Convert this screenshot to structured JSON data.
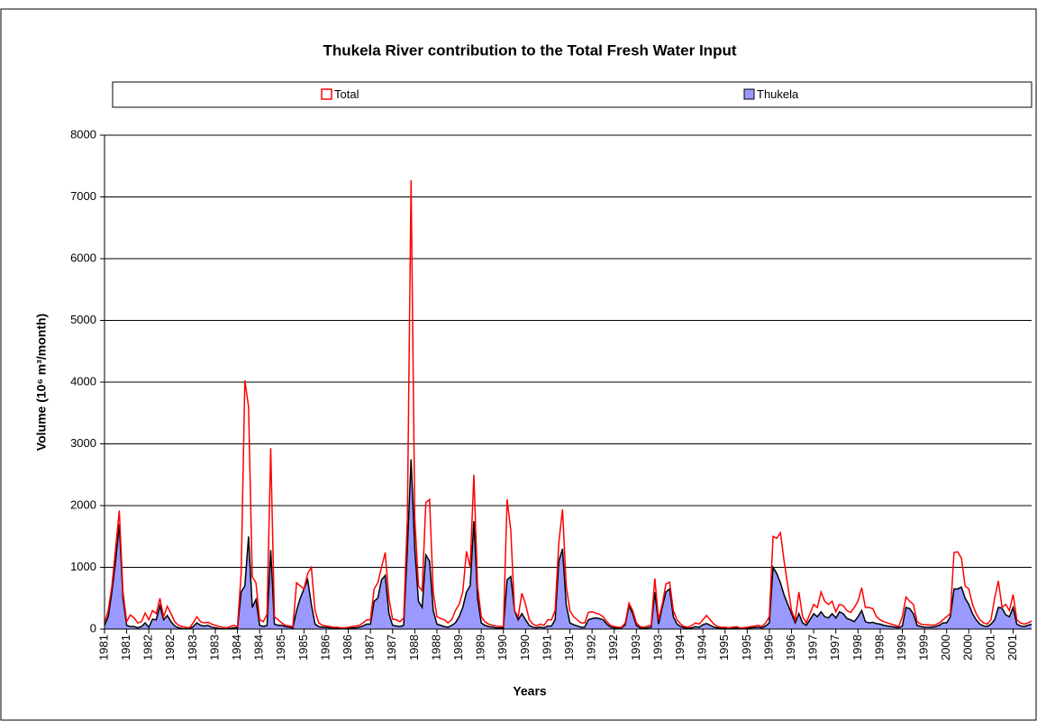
{
  "chart_data": {
    "type": "line",
    "title": "Thukela River contribution to the Total Fresh Water Input",
    "x_label": "Years",
    "y_label": "Volume (10⁶ m³/month)",
    "ylim": [
      0,
      8000
    ],
    "yticks": [
      0,
      1000,
      2000,
      3000,
      4000,
      5000,
      6000,
      7000,
      8000
    ],
    "grid": true,
    "legend": "top",
    "categories": [
      "1981",
      null,
      null,
      null,
      null,
      null,
      "1981",
      null,
      null,
      null,
      null,
      null,
      "1982",
      null,
      null,
      null,
      null,
      null,
      "1982",
      null,
      null,
      null,
      null,
      null,
      "1983",
      null,
      null,
      null,
      null,
      null,
      "1983",
      null,
      null,
      null,
      null,
      null,
      "1984",
      null,
      null,
      null,
      null,
      null,
      "1984",
      null,
      null,
      null,
      null,
      null,
      "1985",
      null,
      null,
      null,
      null,
      null,
      "1985",
      null,
      null,
      null,
      null,
      null,
      "1986",
      null,
      null,
      null,
      null,
      null,
      "1986",
      null,
      null,
      null,
      null,
      null,
      "1987",
      null,
      null,
      null,
      null,
      null,
      "1987",
      null,
      null,
      null,
      null,
      null,
      "1988",
      null,
      null,
      null,
      null,
      null,
      "1988",
      null,
      null,
      null,
      null,
      null,
      "1989",
      null,
      null,
      null,
      null,
      null,
      "1989",
      null,
      null,
      null,
      null,
      null,
      "1990",
      null,
      null,
      null,
      null,
      null,
      "1990",
      null,
      null,
      null,
      null,
      null,
      "1991",
      null,
      null,
      null,
      null,
      null,
      "1991",
      null,
      null,
      null,
      null,
      null,
      "1992",
      null,
      null,
      null,
      null,
      null,
      "1992",
      null,
      null,
      null,
      null,
      null,
      "1993",
      null,
      null,
      null,
      null,
      null,
      "1993",
      null,
      null,
      null,
      null,
      null,
      "1994",
      null,
      null,
      null,
      null,
      null,
      "1994",
      null,
      null,
      null,
      null,
      null,
      "1995",
      null,
      null,
      null,
      null,
      null,
      "1995",
      null,
      null,
      null,
      null,
      null,
      "1996",
      null,
      null,
      null,
      null,
      null,
      "1996",
      null,
      null,
      null,
      null,
      null,
      "1997",
      null,
      null,
      null,
      null,
      null,
      "1997",
      null,
      null,
      null,
      null,
      null,
      "1998",
      null,
      null,
      null,
      null,
      null,
      "1998",
      null,
      null,
      null,
      null,
      null,
      "1999",
      null,
      null,
      null,
      null,
      null,
      "1999",
      null,
      null,
      null,
      null,
      null,
      "2000",
      null,
      null,
      null,
      null,
      null,
      "2000",
      null,
      null,
      null,
      null,
      null,
      "2001",
      null,
      null,
      null,
      null,
      null,
      "2001",
      null,
      null,
      null,
      null,
      null
    ],
    "series": [
      {
        "name": "Total",
        "color": "#ff0000",
        "style": "line",
        "values": [
          100,
          300,
          700,
          1300,
          1920,
          600,
          120,
          230,
          180,
          100,
          120,
          260,
          150,
          300,
          250,
          500,
          200,
          370,
          250,
          120,
          60,
          40,
          30,
          20,
          100,
          200,
          120,
          100,
          110,
          80,
          60,
          40,
          30,
          20,
          40,
          60,
          40,
          900,
          4030,
          3600,
          850,
          750,
          150,
          120,
          240,
          2930,
          200,
          150,
          100,
          60,
          50,
          40,
          750,
          700,
          650,
          900,
          1000,
          300,
          100,
          60,
          50,
          40,
          30,
          30,
          20,
          20,
          30,
          40,
          50,
          60,
          100,
          150,
          150,
          650,
          750,
          1000,
          1240,
          500,
          160,
          150,
          120,
          180,
          1800,
          7270,
          1800,
          700,
          620,
          2050,
          2100,
          600,
          200,
          170,
          150,
          100,
          150,
          300,
          400,
          600,
          1260,
          1000,
          2500,
          700,
          200,
          120,
          80,
          60,
          50,
          40,
          40,
          2100,
          1600,
          300,
          200,
          580,
          400,
          150,
          80,
          50,
          80,
          60,
          150,
          150,
          300,
          1400,
          1940,
          700,
          300,
          200,
          150,
          100,
          100,
          270,
          280,
          260,
          240,
          200,
          120,
          60,
          40,
          30,
          30,
          100,
          420,
          300,
          100,
          40,
          30,
          50,
          60,
          820,
          150,
          400,
          730,
          760,
          300,
          150,
          80,
          40,
          30,
          60,
          100,
          80,
          150,
          220,
          150,
          80,
          40,
          30,
          30,
          20,
          30,
          40,
          20,
          20,
          30,
          40,
          50,
          60,
          40,
          100,
          200,
          1500,
          1470,
          1560,
          1100,
          700,
          300,
          150,
          600,
          200,
          100,
          250,
          400,
          350,
          600,
          450,
          400,
          450,
          280,
          400,
          380,
          300,
          270,
          350,
          450,
          670,
          350,
          350,
          330,
          200,
          150,
          120,
          100,
          80,
          60,
          40,
          200,
          520,
          450,
          400,
          120,
          80,
          70,
          70,
          60,
          70,
          100,
          150,
          200,
          250,
          1240,
          1250,
          1150,
          700,
          650,
          400,
          250,
          150,
          100,
          80,
          150,
          500,
          780,
          350,
          400,
          300,
          560,
          150,
          100,
          80,
          100,
          130
        ]
      },
      {
        "name": "Thukela",
        "color": "#9999ff",
        "style": "area",
        "values": [
          60,
          200,
          600,
          1100,
          1700,
          500,
          60,
          40,
          40,
          20,
          40,
          100,
          30,
          160,
          150,
          380,
          150,
          220,
          120,
          50,
          20,
          10,
          5,
          5,
          40,
          100,
          60,
          50,
          60,
          30,
          20,
          10,
          5,
          5,
          10,
          20,
          20,
          600,
          700,
          1500,
          350,
          480,
          60,
          40,
          60,
          1280,
          80,
          60,
          60,
          40,
          30,
          20,
          300,
          500,
          650,
          800,
          400,
          80,
          40,
          30,
          30,
          20,
          20,
          15,
          10,
          10,
          15,
          20,
          20,
          30,
          50,
          80,
          80,
          450,
          500,
          800,
          870,
          250,
          60,
          50,
          40,
          60,
          1300,
          2750,
          1300,
          450,
          350,
          1200,
          1100,
          300,
          80,
          60,
          40,
          30,
          60,
          100,
          200,
          350,
          600,
          700,
          1750,
          500,
          100,
          60,
          40,
          30,
          20,
          15,
          20,
          800,
          850,
          300,
          150,
          250,
          150,
          60,
          30,
          20,
          30,
          20,
          50,
          50,
          150,
          1100,
          1300,
          400,
          100,
          70,
          50,
          30,
          30,
          150,
          170,
          180,
          170,
          150,
          80,
          30,
          20,
          15,
          20,
          70,
          380,
          250,
          60,
          20,
          10,
          20,
          30,
          600,
          80,
          350,
          600,
          650,
          200,
          80,
          40,
          20,
          10,
          20,
          40,
          30,
          70,
          90,
          60,
          30,
          20,
          10,
          15,
          10,
          15,
          20,
          10,
          10,
          15,
          20,
          25,
          30,
          20,
          50,
          100,
          1000,
          900,
          750,
          550,
          400,
          250,
          100,
          250,
          100,
          60,
          150,
          250,
          200,
          280,
          200,
          180,
          250,
          180,
          280,
          250,
          170,
          150,
          120,
          200,
          300,
          120,
          100,
          110,
          90,
          80,
          60,
          50,
          40,
          30,
          20,
          50,
          350,
          330,
          250,
          60,
          40,
          30,
          30,
          30,
          40,
          60,
          100,
          100,
          200,
          650,
          650,
          680,
          500,
          400,
          250,
          150,
          80,
          50,
          40,
          80,
          150,
          350,
          340,
          230,
          200,
          350,
          80,
          50,
          40,
          60,
          80
        ]
      }
    ]
  }
}
